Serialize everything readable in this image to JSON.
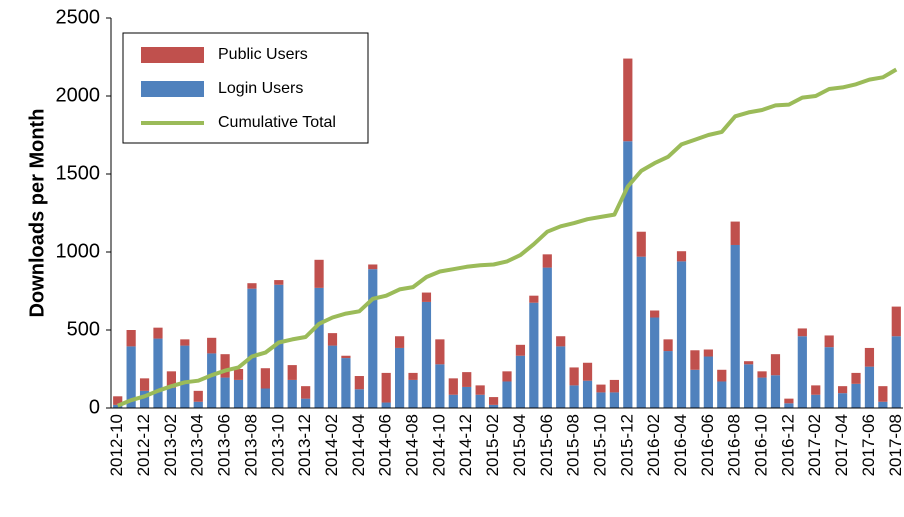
{
  "chart_data": {
    "type": "bar",
    "stacked": true,
    "ylabel": "Downloads per Month",
    "categories": [
      "2012-10",
      null,
      "2012-12",
      null,
      "2013-02",
      null,
      "2013-04",
      null,
      "2013-06",
      null,
      "2013-08",
      null,
      "2013-10",
      null,
      "2013-12",
      null,
      "2014-02",
      null,
      "2014-04",
      null,
      "2014-06",
      null,
      "2014-08",
      null,
      "2014-10",
      null,
      "2014-12",
      null,
      "2015-02",
      null,
      "2015-04",
      null,
      "2015-06",
      null,
      "2015-08",
      null,
      "2015-10",
      null,
      "2015-12",
      null,
      "2016-02",
      null,
      "2016-04",
      null,
      "2016-06",
      null,
      "2016-08",
      null,
      "2016-10",
      null,
      "2016-12",
      null,
      "2017-02",
      null,
      "2017-04",
      null,
      "2017-06",
      null,
      "2017-08"
    ],
    "series": [
      {
        "name": "Public Users",
        "type": "bar",
        "color": "#c0504d",
        "values": [
          55,
          105,
          80,
          70,
          105,
          40,
          70,
          100,
          150,
          70,
          35,
          130,
          30,
          95,
          80,
          180,
          80,
          15,
          85,
          30,
          190,
          75,
          45,
          60,
          160,
          105,
          95,
          60,
          50,
          65,
          70,
          45,
          85,
          65,
          115,
          115,
          50,
          80,
          530,
          160,
          45,
          75,
          65,
          125,
          45,
          75,
          150,
          20,
          40,
          135,
          30,
          50,
          60,
          75,
          45,
          70,
          120,
          100,
          190
        ]
      },
      {
        "name": "Login Users",
        "type": "bar",
        "color": "#4f81bd",
        "values": [
          20,
          395,
          110,
          445,
          130,
          400,
          40,
          350,
          195,
          180,
          765,
          125,
          790,
          180,
          60,
          770,
          400,
          320,
          120,
          890,
          35,
          385,
          180,
          680,
          280,
          85,
          135,
          85,
          20,
          170,
          335,
          675,
          900,
          395,
          145,
          175,
          100,
          100,
          1710,
          970,
          580,
          365,
          940,
          245,
          330,
          170,
          1045,
          280,
          195,
          210,
          30,
          460,
          85,
          390,
          95,
          155,
          265,
          40,
          460
        ]
      },
      {
        "name": "Cumulative Total",
        "type": "line",
        "color": "#9bbb59",
        "values": [
          15,
          50,
          75,
          110,
          140,
          165,
          175,
          210,
          240,
          260,
          330,
          355,
          420,
          440,
          455,
          540,
          580,
          605,
          620,
          700,
          720,
          760,
          775,
          840,
          875,
          890,
          905,
          915,
          920,
          940,
          980,
          1050,
          1130,
          1165,
          1185,
          1210,
          1225,
          1240,
          1420,
          1520,
          1570,
          1610,
          1690,
          1720,
          1750,
          1770,
          1870,
          1895,
          1910,
          1940,
          1945,
          1990,
          2000,
          2045,
          2055,
          2075,
          2105,
          2120,
          2170
        ]
      }
    ],
    "ylim": [
      0,
      2500
    ],
    "yticks": [
      0,
      500,
      1000,
      1500,
      2000,
      2500
    ],
    "legend": "upper left",
    "grid": false
  }
}
